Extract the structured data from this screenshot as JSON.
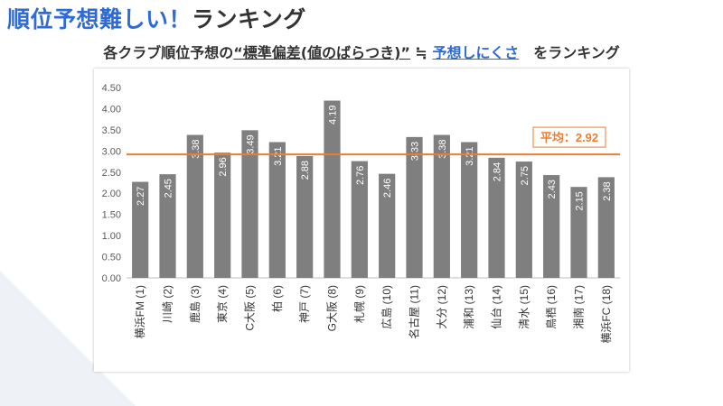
{
  "headline": {
    "part1": "順位予想難しい！",
    "part2": "ランキング"
  },
  "subtitle": {
    "lead": "各クラブ順位予想の",
    "key": "“標準偏差(値のばらつき)”",
    "approx": " ≒ ",
    "meaning": "予想しにくさ",
    "tail": "　をランキング"
  },
  "colors": {
    "bar": "#7f7f7f",
    "average_line": "#ed7d31",
    "accent": "#2e6bd6"
  },
  "chart_data": {
    "type": "bar",
    "categories": [
      "横浜FM (1)",
      "川崎 (2)",
      "鹿島 (3)",
      "東京 (4)",
      "C大阪 (5)",
      "柏 (6)",
      "神戸 (7)",
      "G大阪 (8)",
      "札幌 (9)",
      "広島 (10)",
      "名古屋 (11)",
      "大分 (12)",
      "浦和 (13)",
      "仙台 (14)",
      "清水 (15)",
      "鳥栖 (16)",
      "湘南 (17)",
      "横浜FC (18)"
    ],
    "values": [
      2.27,
      2.45,
      3.38,
      2.96,
      3.49,
      3.21,
      2.88,
      4.19,
      2.76,
      2.46,
      3.33,
      3.38,
      3.21,
      2.84,
      2.75,
      2.43,
      2.15,
      2.38
    ],
    "value_labels": [
      "2.27",
      "2.45",
      "3.38",
      "2.96",
      "3.49",
      "3.21",
      "2.88",
      "4.19",
      "2.76",
      "2.46",
      "3.33",
      "3.38",
      "3.21",
      "2.84",
      "2.75",
      "2.43",
      "2.15",
      "2.38"
    ],
    "average": 2.92,
    "average_label": "平均：2.92",
    "ylim": [
      0,
      4.5
    ],
    "yticks": [
      "0.00",
      "0.50",
      "1.00",
      "1.50",
      "2.00",
      "2.50",
      "3.00",
      "3.50",
      "4.00",
      "4.50"
    ],
    "title": "",
    "xlabel": "",
    "ylabel": "",
    "grid": false
  }
}
